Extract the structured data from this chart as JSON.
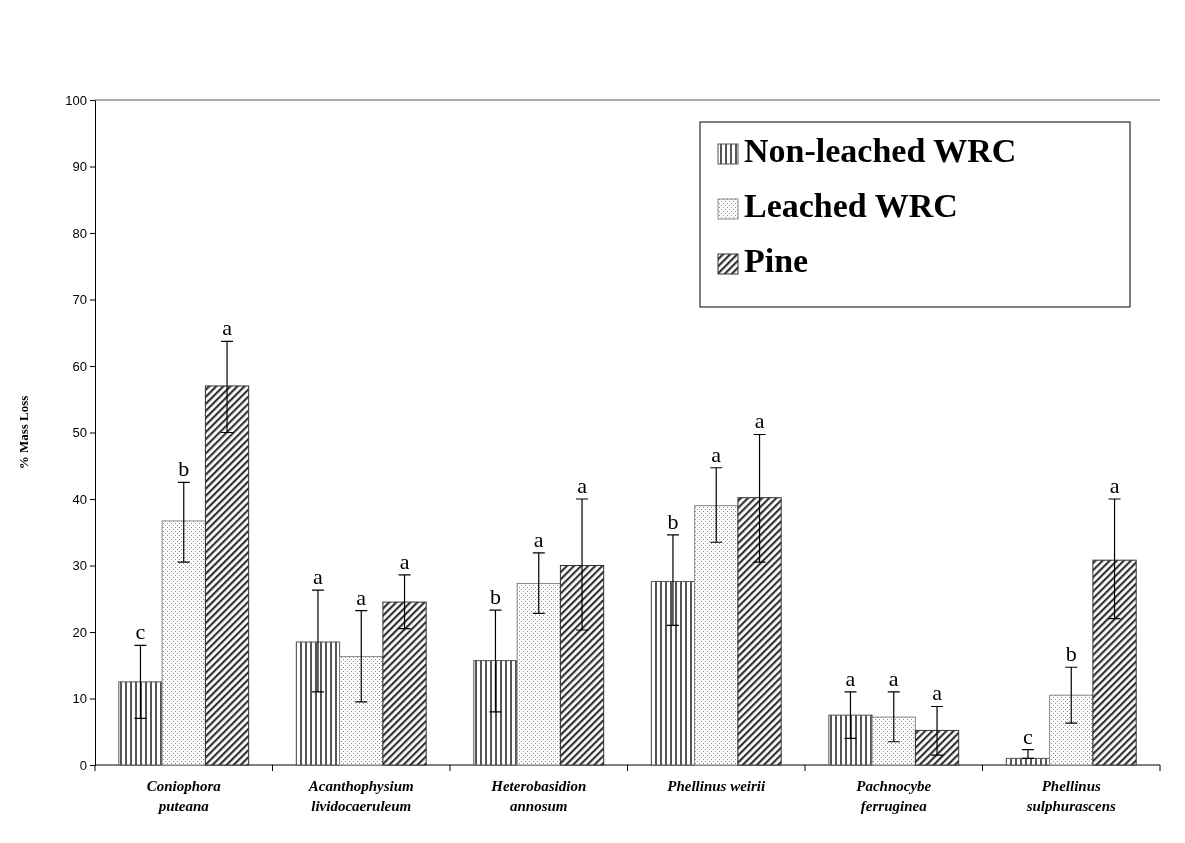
{
  "chart_data": {
    "type": "bar",
    "ylabel": "% Mass Loss",
    "categories": [
      "Coniophora puteana",
      "Acanthophysium lividocaeruleum",
      "Heterobasidion annosum",
      "Phellinus weirii",
      "Pachnocybe ferruginea",
      "Phellinus sulphurascens"
    ],
    "series": [
      {
        "name": "Non-leached WRC",
        "color": "#555555",
        "values": [
          12.5,
          18.5,
          15.7,
          27.6,
          7.5,
          1
        ],
        "errors": [
          [
            7,
            18
          ],
          [
            11,
            26.3
          ],
          [
            8,
            23.3
          ],
          [
            21,
            34.6
          ],
          [
            4,
            11
          ],
          [
            1,
            2.3
          ]
        ],
        "value_labels": [
          "c",
          "a",
          "b",
          "b",
          "a",
          "c"
        ]
      },
      {
        "name": "Leached WRC",
        "color": "#888888",
        "values": [
          36.7,
          16.3,
          27.3,
          39,
          7.2,
          10.5
        ],
        "errors": [
          [
            30.5,
            42.5
          ],
          [
            9.5,
            23.2
          ],
          [
            22.8,
            31.9
          ],
          [
            33.5,
            44.7
          ],
          [
            3.5,
            11
          ],
          [
            6.3,
            14.7
          ]
        ],
        "value_labels": [
          "b",
          "a",
          "a",
          "a",
          "a",
          "b"
        ]
      },
      {
        "name": "Pine",
        "color": "#333333",
        "values": [
          57,
          24.5,
          30,
          40.2,
          5.2,
          30.8
        ],
        "errors": [
          [
            50,
            63.7
          ],
          [
            20.5,
            28.6
          ],
          [
            20.3,
            40
          ],
          [
            30.5,
            49.7
          ],
          [
            1.5,
            8.8
          ],
          [
            22,
            40
          ]
        ],
        "value_labels": [
          "a",
          "a",
          "a",
          "a",
          "a",
          "a"
        ]
      }
    ],
    "ylim": [
      0,
      100
    ],
    "yticks": [
      0,
      10,
      20,
      30,
      40,
      50,
      60,
      70,
      80,
      90,
      100
    ],
    "legend": "top right"
  }
}
